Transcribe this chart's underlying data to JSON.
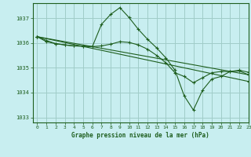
{
  "title": "Graphe pression niveau de la mer (hPa)",
  "bg_color": "#c8eef0",
  "grid_color": "#a0ccc8",
  "line_color": "#1e5e1e",
  "xlim": [
    -0.5,
    23
  ],
  "ylim": [
    1032.8,
    1037.6
  ],
  "yticks": [
    1033,
    1034,
    1035,
    1036,
    1037
  ],
  "xticks": [
    0,
    1,
    2,
    3,
    4,
    5,
    6,
    7,
    8,
    9,
    10,
    11,
    12,
    13,
    14,
    15,
    16,
    17,
    18,
    19,
    20,
    21,
    22,
    23
  ],
  "series": [
    {
      "x": [
        0,
        1,
        2,
        3,
        4,
        5,
        6,
        7,
        8,
        9,
        10,
        11,
        12,
        13,
        14,
        15,
        16,
        17,
        18,
        19,
        20,
        21,
        22,
        23
      ],
      "y": [
        1036.25,
        1036.1,
        1035.97,
        1035.92,
        1035.88,
        1035.87,
        1035.85,
        1036.75,
        1037.15,
        1037.42,
        1037.02,
        1036.55,
        1036.15,
        1035.8,
        1035.4,
        1034.9,
        1033.87,
        1033.3,
        1034.1,
        1034.55,
        1034.65,
        1034.85,
        1034.9,
        1034.82
      ]
    },
    {
      "x": [
        0,
        1,
        2,
        3,
        4,
        5,
        6,
        7,
        8,
        9,
        10,
        11,
        12,
        13,
        14,
        15,
        16,
        17,
        18,
        19,
        20,
        21,
        22,
        23
      ],
      "y": [
        1036.25,
        1036.05,
        1035.97,
        1035.92,
        1035.88,
        1035.87,
        1035.85,
        1035.88,
        1035.95,
        1036.05,
        1036.02,
        1035.92,
        1035.75,
        1035.5,
        1035.2,
        1034.8,
        1034.65,
        1034.4,
        1034.6,
        1034.8,
        1034.85,
        1034.85,
        1034.87,
        1034.72
      ]
    },
    {
      "x": [
        0,
        23
      ],
      "y": [
        1036.25,
        1034.72
      ]
    },
    {
      "x": [
        0,
        23
      ],
      "y": [
        1036.25,
        1034.45
      ]
    }
  ]
}
